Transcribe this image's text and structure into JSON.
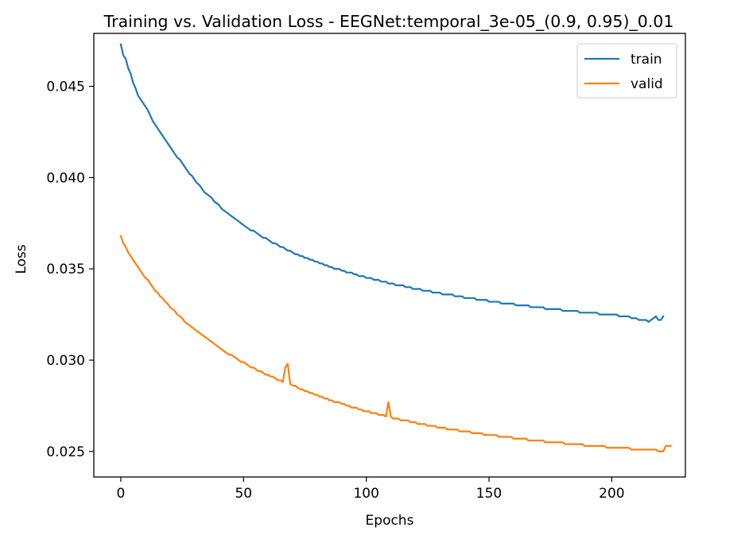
{
  "chart_data": {
    "type": "line",
    "title": "Training vs. Validation Loss - EEGNet:temporal_3e-05_(0.9, 0.95)_0.01",
    "xlabel": "Epochs",
    "ylabel": "Loss",
    "xlim": [
      -11,
      230
    ],
    "ylim": [
      0.0236,
      0.0479
    ],
    "xticks": [
      0,
      50,
      100,
      150,
      200
    ],
    "yticks": [
      0.025,
      0.03,
      0.035,
      0.04,
      0.045
    ],
    "xtick_labels": [
      "0",
      "50",
      "100",
      "150",
      "200"
    ],
    "ytick_labels": [
      "0.025",
      "0.030",
      "0.035",
      "0.040",
      "0.045"
    ],
    "grid": false,
    "legend_position": "top-right",
    "series": [
      {
        "name": "train",
        "color": "#1f77b4",
        "x_start": 0,
        "x_step": 1,
        "values": [
          0.0473,
          0.0467,
          0.0465,
          0.046,
          0.0457,
          0.0452,
          0.0449,
          0.0445,
          0.0443,
          0.0441,
          0.0439,
          0.0437,
          0.0434,
          0.0431,
          0.0429,
          0.0427,
          0.0425,
          0.0423,
          0.0421,
          0.0419,
          0.0417,
          0.0415,
          0.0413,
          0.0411,
          0.041,
          0.0408,
          0.0406,
          0.0404,
          0.0402,
          0.0401,
          0.0399,
          0.0397,
          0.0396,
          0.0394,
          0.0392,
          0.0391,
          0.039,
          0.0389,
          0.0387,
          0.0386,
          0.0385,
          0.0383,
          0.0382,
          0.0381,
          0.038,
          0.0379,
          0.0378,
          0.0377,
          0.0376,
          0.0375,
          0.0374,
          0.0373,
          0.0372,
          0.0371,
          0.0371,
          0.037,
          0.0369,
          0.0368,
          0.0367,
          0.0367,
          0.0366,
          0.0365,
          0.0364,
          0.0364,
          0.0363,
          0.0362,
          0.0362,
          0.0361,
          0.036,
          0.036,
          0.0359,
          0.0358,
          0.0358,
          0.0357,
          0.0357,
          0.0356,
          0.0356,
          0.0355,
          0.0355,
          0.0354,
          0.0354,
          0.0353,
          0.0353,
          0.0352,
          0.0352,
          0.0351,
          0.0351,
          0.035,
          0.035,
          0.035,
          0.0349,
          0.0349,
          0.0348,
          0.0348,
          0.0348,
          0.0347,
          0.0347,
          0.0346,
          0.0346,
          0.0346,
          0.0345,
          0.0345,
          0.0345,
          0.0344,
          0.0344,
          0.0344,
          0.0343,
          0.0343,
          0.0343,
          0.0342,
          0.0342,
          0.0342,
          0.0341,
          0.0341,
          0.0341,
          0.0341,
          0.034,
          0.034,
          0.034,
          0.0339,
          0.0339,
          0.0339,
          0.0339,
          0.0338,
          0.0338,
          0.0338,
          0.0338,
          0.0337,
          0.0337,
          0.0337,
          0.0337,
          0.0336,
          0.0336,
          0.0336,
          0.0336,
          0.0336,
          0.0335,
          0.0335,
          0.0335,
          0.0335,
          0.0334,
          0.0334,
          0.0334,
          0.0334,
          0.0334,
          0.0333,
          0.0333,
          0.0333,
          0.0333,
          0.0333,
          0.0332,
          0.0332,
          0.0332,
          0.0332,
          0.0332,
          0.0331,
          0.0331,
          0.0331,
          0.0331,
          0.0331,
          0.0331,
          0.033,
          0.033,
          0.033,
          0.033,
          0.033,
          0.033,
          0.0329,
          0.0329,
          0.0329,
          0.0329,
          0.0329,
          0.0329,
          0.0328,
          0.0328,
          0.0328,
          0.0328,
          0.0328,
          0.0328,
          0.0328,
          0.0327,
          0.0327,
          0.0327,
          0.0327,
          0.0327,
          0.0327,
          0.0327,
          0.0326,
          0.0326,
          0.0326,
          0.0326,
          0.0326,
          0.0326,
          0.0326,
          0.0326,
          0.0325,
          0.0325,
          0.0325,
          0.0325,
          0.0325,
          0.0325,
          0.0325,
          0.0325,
          0.0324,
          0.0324,
          0.0324,
          0.0324,
          0.0324,
          0.0323,
          0.0323,
          0.0323,
          0.0322,
          0.0322,
          0.0322,
          0.0322,
          0.0321,
          0.0322,
          0.0323,
          0.0324,
          0.0322,
          0.0322,
          0.0324
        ]
      },
      {
        "name": "valid",
        "color": "#ff7f0e",
        "x_start": 0,
        "x_step": 1,
        "values": [
          0.0368,
          0.0364,
          0.0362,
          0.0359,
          0.0357,
          0.0355,
          0.0353,
          0.0351,
          0.0349,
          0.0347,
          0.0345,
          0.0344,
          0.0342,
          0.034,
          0.0338,
          0.0337,
          0.0335,
          0.0334,
          0.0332,
          0.0331,
          0.0329,
          0.0328,
          0.0327,
          0.0325,
          0.0324,
          0.0323,
          0.0321,
          0.032,
          0.0319,
          0.0318,
          0.0317,
          0.0316,
          0.0315,
          0.0314,
          0.0313,
          0.0312,
          0.0311,
          0.031,
          0.0309,
          0.0308,
          0.0307,
          0.0306,
          0.0305,
          0.0304,
          0.0303,
          0.0303,
          0.0302,
          0.0301,
          0.03,
          0.0299,
          0.0299,
          0.0298,
          0.0297,
          0.0296,
          0.0296,
          0.0295,
          0.0294,
          0.0294,
          0.0293,
          0.0292,
          0.0292,
          0.0291,
          0.0291,
          0.029,
          0.0289,
          0.0289,
          0.0288,
          0.0296,
          0.0298,
          0.0287,
          0.0286,
          0.0286,
          0.0285,
          0.0284,
          0.0284,
          0.0283,
          0.0283,
          0.0282,
          0.0282,
          0.0281,
          0.0281,
          0.028,
          0.028,
          0.0279,
          0.0279,
          0.0278,
          0.0278,
          0.0277,
          0.0277,
          0.0277,
          0.0276,
          0.0276,
          0.0275,
          0.0275,
          0.0274,
          0.0274,
          0.0274,
          0.0273,
          0.0273,
          0.0272,
          0.0272,
          0.0272,
          0.0271,
          0.0271,
          0.0271,
          0.027,
          0.027,
          0.027,
          0.0269,
          0.0277,
          0.0269,
          0.0268,
          0.0268,
          0.0268,
          0.0267,
          0.0267,
          0.0267,
          0.0267,
          0.0266,
          0.0266,
          0.0266,
          0.0265,
          0.0265,
          0.0265,
          0.0265,
          0.0264,
          0.0264,
          0.0264,
          0.0264,
          0.0263,
          0.0263,
          0.0263,
          0.0263,
          0.0262,
          0.0262,
          0.0262,
          0.0262,
          0.0262,
          0.0261,
          0.0261,
          0.0261,
          0.0261,
          0.0261,
          0.026,
          0.026,
          0.026,
          0.026,
          0.026,
          0.0259,
          0.0259,
          0.0259,
          0.0259,
          0.0259,
          0.0259,
          0.0258,
          0.0258,
          0.0258,
          0.0258,
          0.0258,
          0.0258,
          0.0257,
          0.0257,
          0.0257,
          0.0257,
          0.0257,
          0.0257,
          0.0256,
          0.0256,
          0.0256,
          0.0256,
          0.0256,
          0.0256,
          0.0256,
          0.0255,
          0.0255,
          0.0255,
          0.0255,
          0.0255,
          0.0255,
          0.0255,
          0.0255,
          0.0254,
          0.0254,
          0.0254,
          0.0254,
          0.0254,
          0.0254,
          0.0254,
          0.0254,
          0.0253,
          0.0253,
          0.0253,
          0.0253,
          0.0253,
          0.0253,
          0.0253,
          0.0253,
          0.0253,
          0.0252,
          0.0252,
          0.0252,
          0.0252,
          0.0252,
          0.0252,
          0.0252,
          0.0252,
          0.0252,
          0.0252,
          0.0251,
          0.0251,
          0.0251,
          0.0251,
          0.0251,
          0.0251,
          0.0251,
          0.0251,
          0.0251,
          0.0251,
          0.0251,
          0.025,
          0.025,
          0.025,
          0.0253,
          0.0253,
          0.0253
        ]
      }
    ]
  }
}
